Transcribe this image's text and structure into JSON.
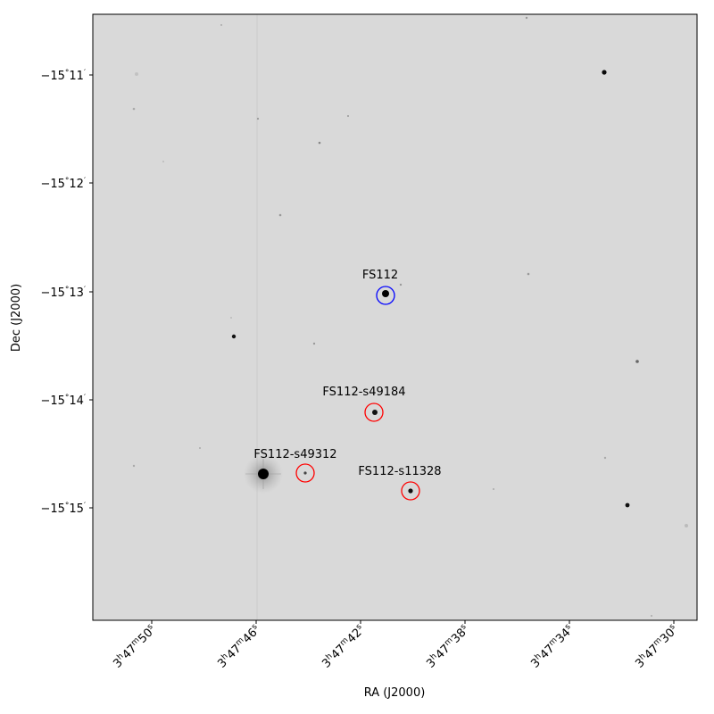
{
  "image": {
    "type": "astronomical sky image with marked stars",
    "colormap": "inverted grayscale",
    "xlabel": "RA (J2000)",
    "ylabel": "Dec (J2000)",
    "ra_ticks": [
      {
        "h": "3",
        "m": "47",
        "s": "50"
      },
      {
        "h": "3",
        "m": "47",
        "s": "46"
      },
      {
        "h": "3",
        "m": "47",
        "s": "42"
      },
      {
        "h": "3",
        "m": "47",
        "s": "38"
      },
      {
        "h": "3",
        "m": "47",
        "s": "34"
      },
      {
        "h": "3",
        "m": "47",
        "s": "30"
      }
    ],
    "dec_ticks": [
      {
        "deg": "−15",
        "min": "11"
      },
      {
        "deg": "−15",
        "min": "12"
      },
      {
        "deg": "−15",
        "min": "13"
      },
      {
        "deg": "−15",
        "min": "14"
      },
      {
        "deg": "−15",
        "min": "15"
      }
    ],
    "markers": [
      {
        "label": "FS112",
        "color": "#0000ff"
      },
      {
        "label": "FS112-s49184",
        "color": "#ff0000"
      },
      {
        "label": "FS112-s49312",
        "color": "#ff0000"
      },
      {
        "label": "FS112-s11328",
        "color": "#ff0000"
      }
    ]
  }
}
